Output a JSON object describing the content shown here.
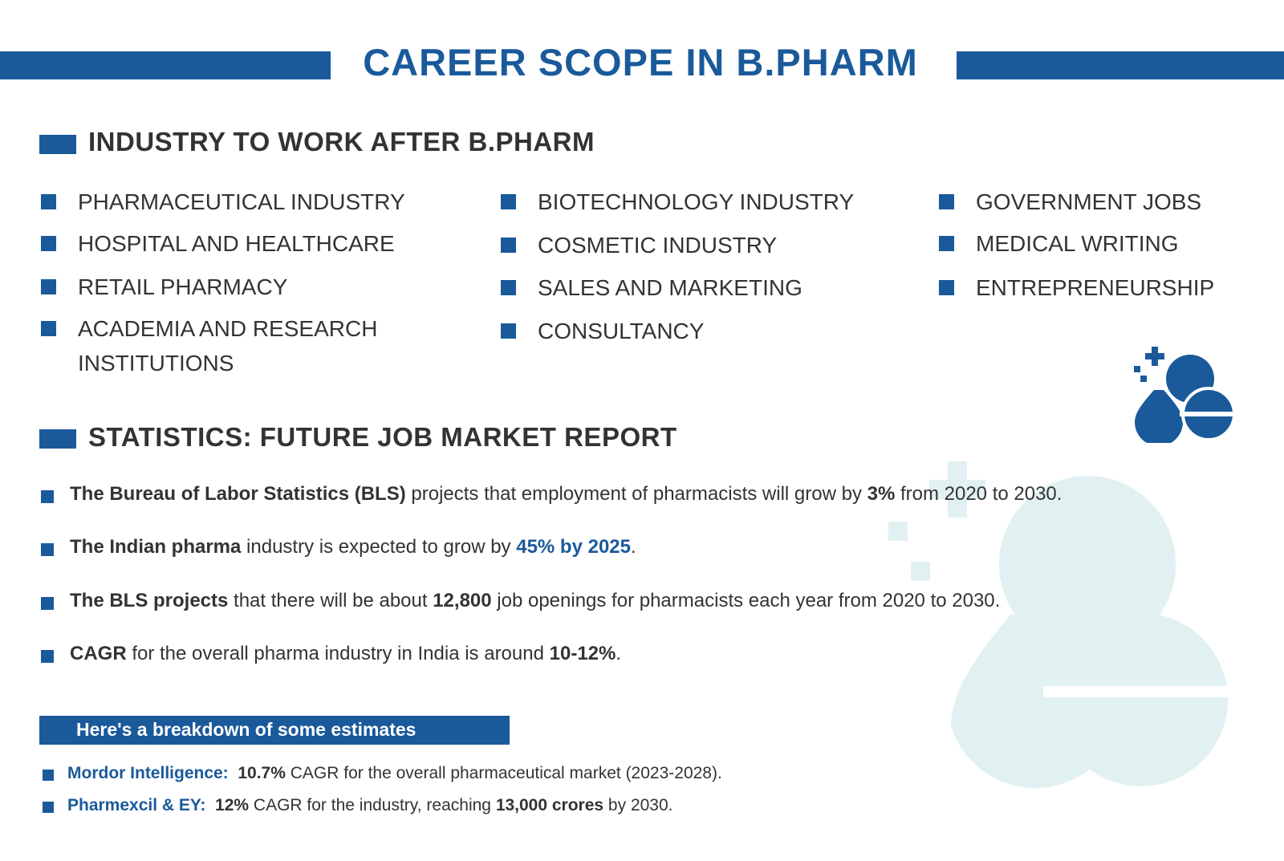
{
  "header": {
    "title": "CAREER SCOPE IN B.PHARM"
  },
  "colors": {
    "primary": "#1a5a9b",
    "text": "#333333",
    "watermark": "#e1f1f1"
  },
  "icons": {
    "main_icon": "pills-icon",
    "background_watermark": "pills-watermark-icon"
  },
  "industry": {
    "heading": "INDUSTRY TO WORK AFTER B.PHARM",
    "col1": [
      "PHARMACEUTICAL INDUSTRY",
      "HOSPITAL AND HEALTHCARE",
      "RETAIL PHARMACY",
      "ACADEMIA AND RESEARCH",
      "INSTITUTIONS"
    ],
    "col2": [
      "BIOTECHNOLOGY INDUSTRY",
      "COSMETIC INDUSTRY",
      "SALES AND MARKETING",
      "CONSULTANCY"
    ],
    "col3": [
      "GOVERNMENT JOBS",
      "MEDICAL WRITING",
      "ENTREPRENEURSHIP"
    ]
  },
  "statistics": {
    "heading": "STATISTICS: FUTURE JOB MARKET REPORT",
    "items": [
      {
        "b1": "The Bureau of Labor Statistics (BLS)",
        "t1": " projects that employment of pharmacists will grow by ",
        "b2": "3%",
        "t2": " from 2020 to 2030."
      },
      {
        "b1": "The Indian pharma",
        "t1": " industry is expected to grow by ",
        "hl": "45% by 2025",
        "t2": "."
      },
      {
        "b1": "The BLS projects",
        "t1": " that there will be about ",
        "b2": "12,800",
        "t2": " job openings for pharmacists each year from 2020 to 2030."
      },
      {
        "b1": "CAGR",
        "t1": " for the overall pharma industry in India is around ",
        "b2": "10-12%",
        "t2": "."
      }
    ]
  },
  "estimates": {
    "banner": "Here's a breakdown of some estimates",
    "items": [
      {
        "source": "Mordor Intelligence:",
        "b1": "10.7%",
        "t1": " CAGR for the overall pharmaceutical market (2023-2028)."
      },
      {
        "source": "Pharmexcil & EY:",
        "b1": "12%",
        "t1": " CAGR for the industry, reaching ",
        "b2": "13,000 crores",
        "t2": " by 2030."
      }
    ]
  }
}
